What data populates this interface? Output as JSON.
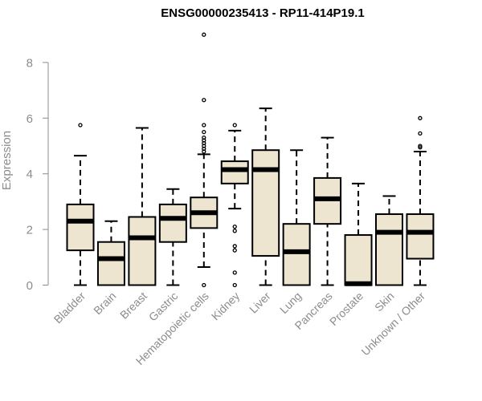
{
  "chart_data": {
    "type": "box",
    "title": "ENSG00000235413 - RP11-414P19.1",
    "xlabel": "",
    "ylabel": "Expression",
    "ylim": [
      0,
      9
    ],
    "yticks": [
      0,
      2,
      4,
      6,
      8
    ],
    "grid": false,
    "colors": {
      "box_fill": "#ede5cf",
      "box_stroke": "#000000",
      "median": "#000000",
      "axis": "#8c8c8c"
    },
    "categories": [
      "Bladder",
      "Brain",
      "Breast",
      "Gastric",
      "Hematopoietic cells",
      "Kidney",
      "Liver",
      "Lung",
      "Pancreas",
      "Prostate",
      "Skin",
      "Unknown / Other"
    ],
    "boxes": [
      {
        "min": 0,
        "q1": 1.25,
        "median": 2.3,
        "q3": 2.9,
        "max": 4.65,
        "outliers": [
          5.75
        ]
      },
      {
        "min": 0,
        "q1": 0,
        "median": 0.95,
        "q3": 1.55,
        "max": 2.3,
        "outliers": []
      },
      {
        "min": 0,
        "q1": 0,
        "median": 1.7,
        "q3": 2.45,
        "max": 5.65,
        "outliers": []
      },
      {
        "min": 0,
        "q1": 1.55,
        "median": 2.4,
        "q3": 2.9,
        "max": 3.45,
        "outliers": []
      },
      {
        "min": 0.65,
        "q1": 2.05,
        "median": 2.6,
        "q3": 3.15,
        "max": 4.7,
        "outliers": [
          0,
          4.8,
          4.9,
          5.0,
          5.1,
          5.2,
          5.3,
          5.5,
          5.75,
          6.65,
          9.0
        ]
      },
      {
        "min": 2.75,
        "q1": 3.65,
        "median": 4.15,
        "q3": 4.45,
        "max": 5.55,
        "outliers": [
          0,
          0.45,
          1.25,
          1.4,
          1.95,
          2.1,
          5.75
        ]
      },
      {
        "min": 0,
        "q1": 1.05,
        "median": 4.15,
        "q3": 4.85,
        "max": 6.35,
        "outliers": []
      },
      {
        "min": 0,
        "q1": 0,
        "median": 1.2,
        "q3": 2.2,
        "max": 4.85,
        "outliers": []
      },
      {
        "min": 0,
        "q1": 2.2,
        "median": 3.1,
        "q3": 3.85,
        "max": 5.3,
        "outliers": []
      },
      {
        "min": 0,
        "q1": 0,
        "median": 0.05,
        "q3": 1.8,
        "max": 3.65,
        "outliers": []
      },
      {
        "min": 0,
        "q1": 0,
        "median": 1.9,
        "q3": 2.55,
        "max": 3.2,
        "outliers": []
      },
      {
        "min": 0,
        "q1": 0.95,
        "median": 1.9,
        "q3": 2.55,
        "max": 4.8,
        "outliers": [
          4.95,
          5.0,
          5.45,
          6.0
        ]
      }
    ]
  }
}
